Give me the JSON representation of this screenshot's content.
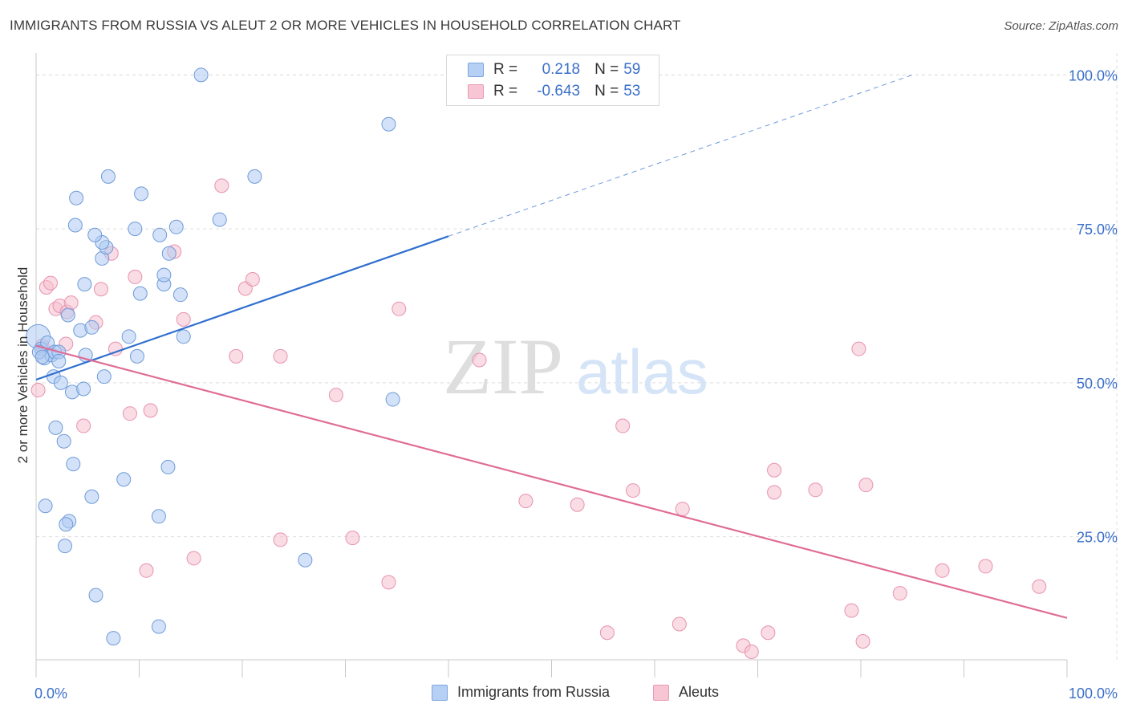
{
  "title": "IMMIGRANTS FROM RUSSIA VS ALEUT 2 OR MORE VEHICLES IN HOUSEHOLD CORRELATION CHART",
  "source": "Source: ZipAtlas.com",
  "watermark": {
    "zip": "ZIP",
    "atlas": "atlas"
  },
  "legend": {
    "r_label": "R =",
    "n_label": "N =",
    "rows": [
      {
        "r": "0.218",
        "n": "59"
      },
      {
        "r": "-0.643",
        "n": "53"
      }
    ]
  },
  "bottom_legend": [
    "Immigrants from Russia",
    "Aleuts"
  ],
  "colors": {
    "blue_fill": "#aecbf2",
    "blue_stroke": "#6f9bd8",
    "blue_line": "#2f6fcf",
    "pink_fill": "#f6c0d0",
    "pink_stroke": "#e892ae",
    "pink_line": "#e06c95",
    "grid": "#dddddd",
    "axis_label": "#3a6fc9"
  },
  "chart_data": {
    "type": "scatter",
    "title": "IMMIGRANTS FROM RUSSIA VS ALEUT 2 OR MORE VEHICLES IN HOUSEHOLD CORRELATION CHART",
    "xlabel": "",
    "ylabel": "2 or more Vehicles in Household",
    "xlim": [
      0,
      100
    ],
    "ylim": [
      5,
      102
    ],
    "x_tick_labels": [
      "0.0%",
      "100.0%"
    ],
    "y_ticks": [
      25,
      50,
      75,
      100
    ],
    "y_tick_labels": [
      "25.0%",
      "50.0%",
      "75.0%",
      "100.0%"
    ],
    "series": [
      {
        "name": "Immigrants from Russia",
        "R": 0.218,
        "N": 59,
        "trend": {
          "x0": 0,
          "y0": 50.5,
          "x1": 40,
          "y1": 73.8,
          "dash_x1": 85,
          "dash_y1": 100
        },
        "points": [
          [
            0.2,
            57.5
          ],
          [
            0.5,
            55.5
          ],
          [
            0.8,
            54
          ],
          [
            1.1,
            56.5
          ],
          [
            1.5,
            54.5
          ],
          [
            1.8,
            55
          ],
          [
            2.2,
            55
          ],
          [
            2.2,
            53.5
          ],
          [
            1.7,
            51
          ],
          [
            2.4,
            50
          ],
          [
            3.5,
            48.5
          ],
          [
            4.6,
            49
          ],
          [
            6.6,
            51
          ],
          [
            1.9,
            42.7
          ],
          [
            2.7,
            40.5
          ],
          [
            3.6,
            36.8
          ],
          [
            0.9,
            30
          ],
          [
            5.4,
            31.5
          ],
          [
            8.5,
            34.3
          ],
          [
            12.8,
            36.3
          ],
          [
            11.9,
            28.3
          ],
          [
            3.2,
            27.5
          ],
          [
            2.9,
            27
          ],
          [
            2.8,
            23.5
          ],
          [
            5.8,
            15.5
          ],
          [
            7.5,
            8.5
          ],
          [
            11.9,
            10.4
          ],
          [
            26.1,
            21.2
          ],
          [
            34.6,
            47.3
          ],
          [
            4.3,
            58.5
          ],
          [
            5.4,
            59
          ],
          [
            3.1,
            61
          ],
          [
            4.8,
            54.5
          ],
          [
            9.0,
            57.5
          ],
          [
            9.8,
            54.3
          ],
          [
            14.3,
            57.5
          ],
          [
            4.7,
            66
          ],
          [
            10.1,
            64.5
          ],
          [
            12.4,
            66
          ],
          [
            12.4,
            67.5
          ],
          [
            14.0,
            64.3
          ],
          [
            6.4,
            70.2
          ],
          [
            6.8,
            72
          ],
          [
            6.4,
            72.8
          ],
          [
            5.7,
            74
          ],
          [
            3.8,
            75.6
          ],
          [
            9.6,
            75
          ],
          [
            12.0,
            74
          ],
          [
            13.6,
            75.3
          ],
          [
            12.9,
            71
          ],
          [
            3.9,
            80
          ],
          [
            10.2,
            80.7
          ],
          [
            7.0,
            83.5
          ],
          [
            17.8,
            76.5
          ],
          [
            21.2,
            83.5
          ],
          [
            34.2,
            92
          ],
          [
            16.0,
            100
          ],
          [
            0.3,
            55
          ],
          [
            0.6,
            54.2
          ]
        ]
      },
      {
        "name": "Aleuts",
        "R": -0.643,
        "N": 53,
        "trend": {
          "x0": 0,
          "y0": 56,
          "x1": 100,
          "y1": 11.8
        },
        "points": [
          [
            0.2,
            48.8
          ],
          [
            0.6,
            56
          ],
          [
            1.0,
            65.5
          ],
          [
            1.4,
            66.2
          ],
          [
            1.9,
            62
          ],
          [
            2.3,
            62.5
          ],
          [
            3.0,
            61.5
          ],
          [
            3.4,
            63
          ],
          [
            2.9,
            56.3
          ],
          [
            4.6,
            43
          ],
          [
            5.8,
            59.8
          ],
          [
            6.3,
            65.2
          ],
          [
            7.3,
            71
          ],
          [
            7.7,
            55.5
          ],
          [
            9.1,
            45
          ],
          [
            9.6,
            67.2
          ],
          [
            11.1,
            45.5
          ],
          [
            14.3,
            60.3
          ],
          [
            13.4,
            71.3
          ],
          [
            18.0,
            82
          ],
          [
            20.3,
            65.3
          ],
          [
            21.0,
            66.8
          ],
          [
            19.4,
            54.3
          ],
          [
            23.7,
            54.3
          ],
          [
            35.2,
            62
          ],
          [
            29.1,
            48
          ],
          [
            43.0,
            53.7
          ],
          [
            47.5,
            30.8
          ],
          [
            52.5,
            30.2
          ],
          [
            56.9,
            43
          ],
          [
            57.9,
            32.5
          ],
          [
            62.7,
            29.5
          ],
          [
            71.6,
            32.2
          ],
          [
            71.6,
            35.8
          ],
          [
            75.6,
            32.6
          ],
          [
            80.5,
            33.4
          ],
          [
            79.8,
            55.5
          ],
          [
            87.9,
            19.5
          ],
          [
            92.1,
            20.2
          ],
          [
            97.3,
            16.9
          ],
          [
            83.8,
            15.8
          ],
          [
            79.1,
            13
          ],
          [
            80.2,
            8
          ],
          [
            71.0,
            9.4
          ],
          [
            68.6,
            7.3
          ],
          [
            69.4,
            6.3
          ],
          [
            62.4,
            10.8
          ],
          [
            55.4,
            9.4
          ],
          [
            34.2,
            17.6
          ],
          [
            30.7,
            24.8
          ],
          [
            23.7,
            24.5
          ],
          [
            15.3,
            21.5
          ],
          [
            10.7,
            19.5
          ]
        ]
      }
    ]
  }
}
